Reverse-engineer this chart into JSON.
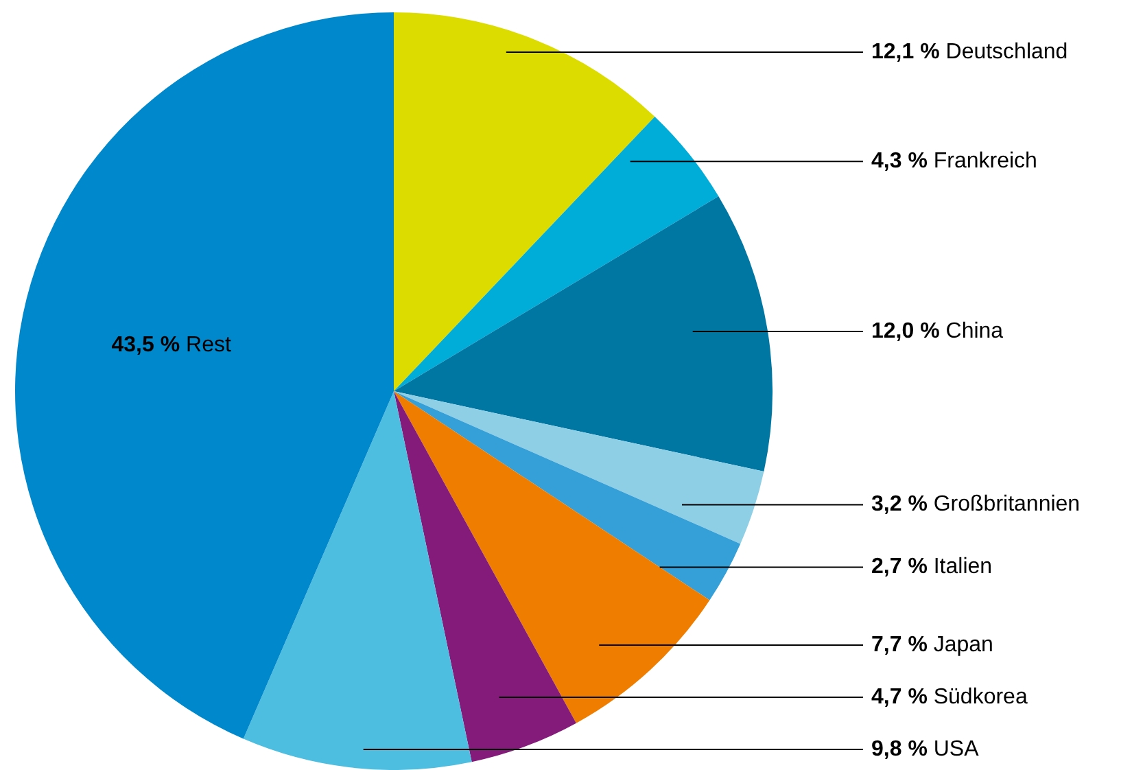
{
  "chart_data": {
    "type": "pie",
    "categories": [
      "Deutschland",
      "Frankreich",
      "China",
      "Großbritannien",
      "Italien",
      "Japan",
      "Südkorea",
      "USA",
      "Rest"
    ],
    "values": [
      12.1,
      4.3,
      12.0,
      3.2,
      2.7,
      7.7,
      4.7,
      9.8,
      43.5
    ],
    "value_labels": [
      "12,1 %",
      "4,3 %",
      "12,0 %",
      "3,2 %",
      "2,7 %",
      "7,7 %",
      "4,7 %",
      "9,8 %",
      "43,5 %"
    ],
    "colors": [
      "#dcdc00",
      "#00acd8",
      "#0076a3",
      "#8ecfe6",
      "#359fd8",
      "#ef7d00",
      "#841a7a",
      "#4dbde0",
      "#0088cc"
    ],
    "legend": false
  }
}
